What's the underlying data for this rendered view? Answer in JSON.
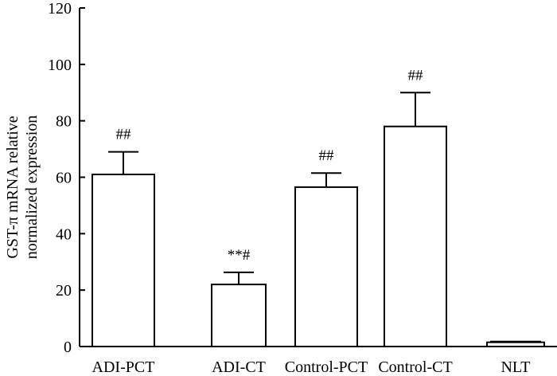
{
  "chart_data": {
    "type": "bar",
    "ylabel_lines": [
      "GST-π mRNA relative",
      "normalized expression"
    ],
    "xlabel": "",
    "ylim": [
      0,
      120
    ],
    "yticks": [
      "0",
      "20",
      "40",
      "60",
      "80",
      "100",
      "120"
    ],
    "ytick_values": [
      0,
      20,
      40,
      60,
      80,
      100,
      120
    ],
    "categories": [
      "ADI-PCT",
      "ADI-CT",
      "Control-PCT",
      "Control-CT",
      "NLT"
    ],
    "values": [
      61,
      22,
      56.5,
      78,
      1.5
    ],
    "errors": [
      8,
      4.3,
      5,
      12,
      0.3
    ],
    "annotations": [
      "##",
      "**#",
      "##",
      "##",
      ""
    ],
    "grid": false,
    "colors": {
      "bar_fill": "#ffffff",
      "stroke": "#000000"
    }
  }
}
